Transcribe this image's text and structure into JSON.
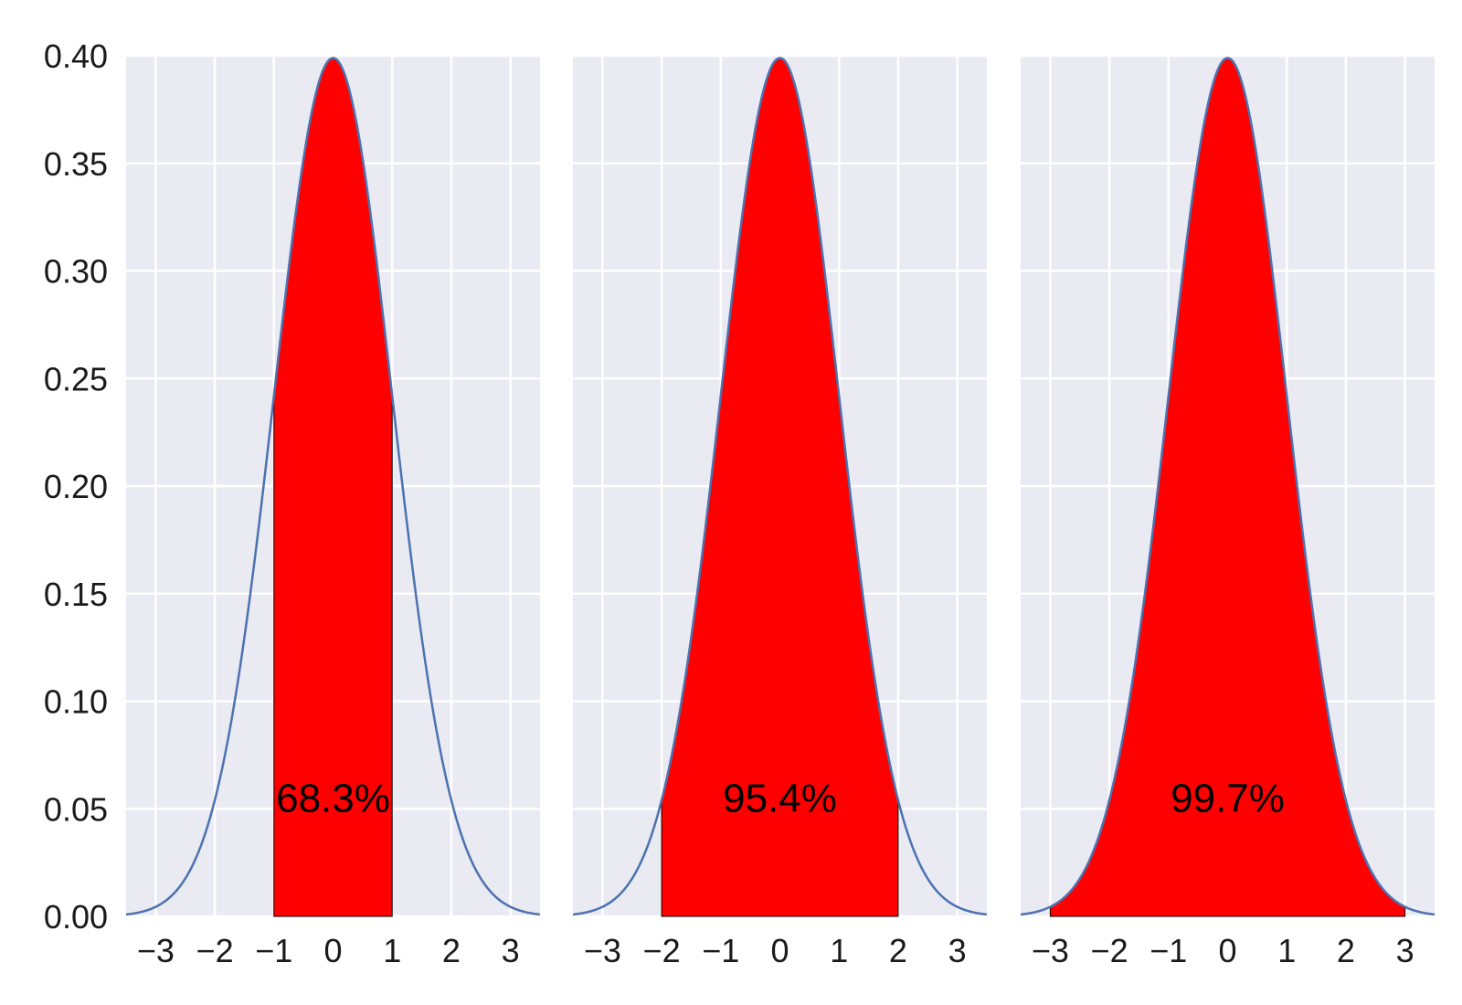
{
  "chart_data": [
    {
      "type": "area",
      "curve": "standard normal pdf",
      "shaded_range": [
        -1,
        1
      ],
      "annotation": "68.3%",
      "annotation_pos": [
        0,
        0.055
      ],
      "xlim": [
        -3.5,
        3.5
      ],
      "ylim": [
        0,
        0.4
      ],
      "x_ticks": [
        -3,
        -2,
        -1,
        0,
        1,
        2,
        3
      ],
      "x_tick_labels": [
        "−3",
        "−2",
        "−1",
        "0",
        "1",
        "2",
        "3"
      ],
      "y_ticks": [
        0,
        0.05,
        0.1,
        0.15,
        0.2,
        0.25,
        0.3,
        0.35,
        0.4
      ],
      "y_tick_labels": [
        "0.00",
        "0.05",
        "0.10",
        "0.15",
        "0.20",
        "0.25",
        "0.30",
        "0.35",
        "0.40"
      ],
      "grid": true
    },
    {
      "type": "area",
      "curve": "standard normal pdf",
      "shaded_range": [
        -2,
        2
      ],
      "annotation": "95.4%",
      "annotation_pos": [
        0,
        0.055
      ],
      "xlim": [
        -3.5,
        3.5
      ],
      "ylim": [
        0,
        0.4
      ],
      "x_ticks": [
        -3,
        -2,
        -1,
        0,
        1,
        2,
        3
      ],
      "x_tick_labels": [
        "−3",
        "−2",
        "−1",
        "0",
        "1",
        "2",
        "3"
      ],
      "grid": true
    },
    {
      "type": "area",
      "curve": "standard normal pdf",
      "shaded_range": [
        -3,
        3
      ],
      "annotation": "99.7%",
      "annotation_pos": [
        0,
        0.055
      ],
      "xlim": [
        -3.5,
        3.5
      ],
      "ylim": [
        0,
        0.4
      ],
      "x_ticks": [
        -3,
        -2,
        -1,
        0,
        1,
        2,
        3
      ],
      "x_tick_labels": [
        "−3",
        "−2",
        "−1",
        "0",
        "1",
        "2",
        "3"
      ],
      "grid": true
    }
  ],
  "style": {
    "plot_background": "#eaeaf2",
    "grid_color": "#ffffff",
    "line_color": "#4c72b0",
    "fill_color": "#ff0000",
    "fill_edge_color": "#000000"
  }
}
